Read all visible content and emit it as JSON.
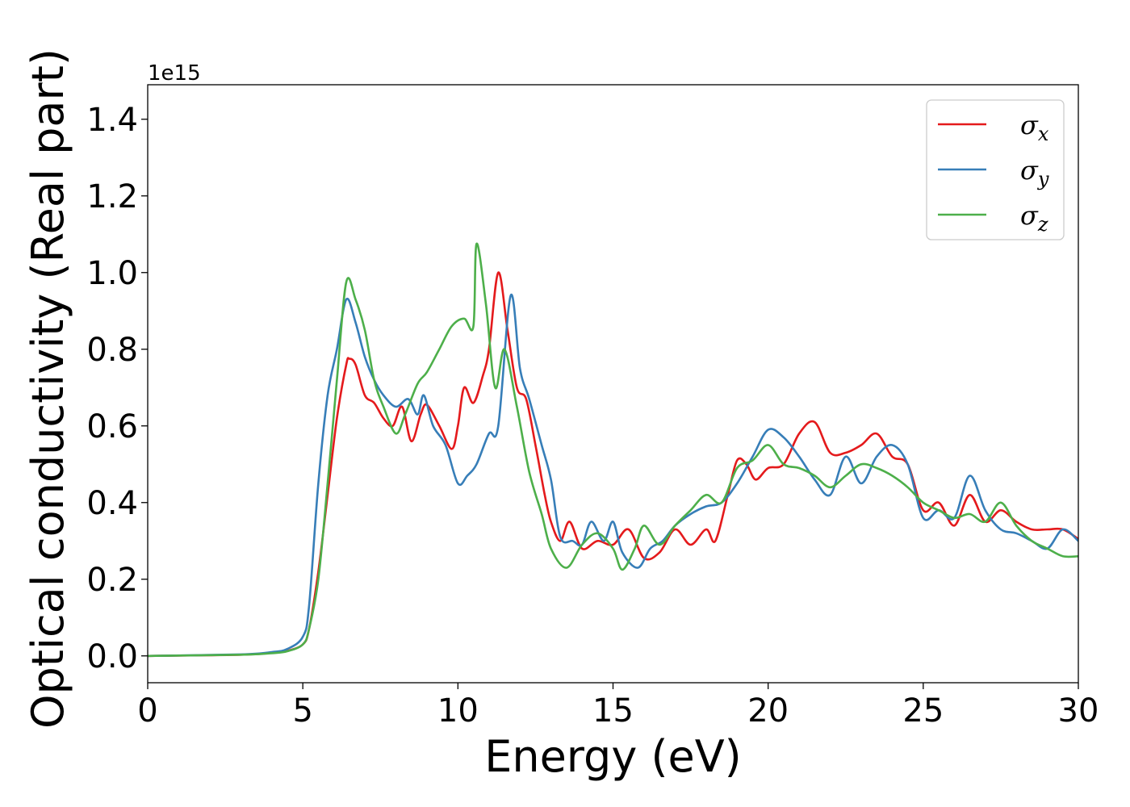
{
  "chart_data": {
    "type": "line",
    "xlabel": "Energy (eV)",
    "ylabel": "Optical conductivity (Real part)",
    "y_offset_label": "1e15",
    "xlim": [
      0,
      30
    ],
    "ylim": [
      -0.07,
      1.49
    ],
    "x_ticks": [
      "0",
      "5",
      "10",
      "15",
      "20",
      "25",
      "30"
    ],
    "y_ticks": [
      "0.0",
      "0.2",
      "0.4",
      "0.6",
      "0.8",
      "1.0",
      "1.2",
      "1.4"
    ],
    "grid": false,
    "legend_position": "top-right",
    "series": [
      {
        "name": "σx",
        "legend_symbol": "σ",
        "legend_subscript": "x",
        "color": "#e41a1c",
        "points": [
          [
            0,
            0
          ],
          [
            3,
            0.003
          ],
          [
            4,
            0.008
          ],
          [
            4.5,
            0.013
          ],
          [
            5,
            0.03
          ],
          [
            5.2,
            0.07
          ],
          [
            5.5,
            0.22
          ],
          [
            5.8,
            0.42
          ],
          [
            6.1,
            0.62
          ],
          [
            6.4,
            0.76
          ],
          [
            6.5,
            0.775
          ],
          [
            6.7,
            0.76
          ],
          [
            7.0,
            0.68
          ],
          [
            7.3,
            0.66
          ],
          [
            7.6,
            0.62
          ],
          [
            7.9,
            0.6
          ],
          [
            8.2,
            0.65
          ],
          [
            8.5,
            0.56
          ],
          [
            8.8,
            0.63
          ],
          [
            9.0,
            0.655
          ],
          [
            9.4,
            0.6
          ],
          [
            9.8,
            0.54
          ],
          [
            10.0,
            0.6
          ],
          [
            10.2,
            0.7
          ],
          [
            10.5,
            0.66
          ],
          [
            10.8,
            0.73
          ],
          [
            11.0,
            0.8
          ],
          [
            11.3,
            1.0
          ],
          [
            11.6,
            0.85
          ],
          [
            11.9,
            0.7
          ],
          [
            12.2,
            0.67
          ],
          [
            12.5,
            0.55
          ],
          [
            12.8,
            0.42
          ],
          [
            13.0,
            0.35
          ],
          [
            13.3,
            0.3
          ],
          [
            13.6,
            0.35
          ],
          [
            14.0,
            0.28
          ],
          [
            14.5,
            0.3
          ],
          [
            15.0,
            0.29
          ],
          [
            15.5,
            0.33
          ],
          [
            16.0,
            0.255
          ],
          [
            16.5,
            0.27
          ],
          [
            17.0,
            0.33
          ],
          [
            17.5,
            0.29
          ],
          [
            18.0,
            0.33
          ],
          [
            18.3,
            0.3
          ],
          [
            18.7,
            0.42
          ],
          [
            19.0,
            0.51
          ],
          [
            19.3,
            0.5
          ],
          [
            19.6,
            0.46
          ],
          [
            20.0,
            0.49
          ],
          [
            20.5,
            0.5
          ],
          [
            21.0,
            0.58
          ],
          [
            21.5,
            0.61
          ],
          [
            22.0,
            0.53
          ],
          [
            22.5,
            0.53
          ],
          [
            23.0,
            0.55
          ],
          [
            23.5,
            0.58
          ],
          [
            24.0,
            0.52
          ],
          [
            24.5,
            0.5
          ],
          [
            25.0,
            0.38
          ],
          [
            25.5,
            0.4
          ],
          [
            26.0,
            0.34
          ],
          [
            26.5,
            0.42
          ],
          [
            27.0,
            0.35
          ],
          [
            27.5,
            0.38
          ],
          [
            28.0,
            0.35
          ],
          [
            28.5,
            0.33
          ],
          [
            29.0,
            0.33
          ],
          [
            29.5,
            0.33
          ],
          [
            30.0,
            0.305
          ]
        ]
      },
      {
        "name": "σy",
        "legend_symbol": "σ",
        "legend_subscript": "y",
        "color": "#377eb8",
        "points": [
          [
            0,
            0
          ],
          [
            3,
            0.004
          ],
          [
            4,
            0.01
          ],
          [
            4.5,
            0.018
          ],
          [
            5,
            0.05
          ],
          [
            5.2,
            0.13
          ],
          [
            5.5,
            0.45
          ],
          [
            5.8,
            0.68
          ],
          [
            6.1,
            0.8
          ],
          [
            6.4,
            0.93
          ],
          [
            6.7,
            0.87
          ],
          [
            7.0,
            0.78
          ],
          [
            7.3,
            0.72
          ],
          [
            7.6,
            0.68
          ],
          [
            8.0,
            0.65
          ],
          [
            8.4,
            0.67
          ],
          [
            8.7,
            0.63
          ],
          [
            8.9,
            0.68
          ],
          [
            9.2,
            0.6
          ],
          [
            9.6,
            0.55
          ],
          [
            10.0,
            0.45
          ],
          [
            10.3,
            0.47
          ],
          [
            10.6,
            0.5
          ],
          [
            11.0,
            0.58
          ],
          [
            11.3,
            0.6
          ],
          [
            11.7,
            0.94
          ],
          [
            12.0,
            0.75
          ],
          [
            12.3,
            0.67
          ],
          [
            12.7,
            0.55
          ],
          [
            13.0,
            0.46
          ],
          [
            13.3,
            0.31
          ],
          [
            13.7,
            0.3
          ],
          [
            14.0,
            0.29
          ],
          [
            14.3,
            0.35
          ],
          [
            14.7,
            0.3
          ],
          [
            15.0,
            0.35
          ],
          [
            15.3,
            0.27
          ],
          [
            15.8,
            0.23
          ],
          [
            16.2,
            0.28
          ],
          [
            16.6,
            0.3
          ],
          [
            17.0,
            0.34
          ],
          [
            17.5,
            0.37
          ],
          [
            18.0,
            0.39
          ],
          [
            18.5,
            0.4
          ],
          [
            19.0,
            0.45
          ],
          [
            19.5,
            0.52
          ],
          [
            20.0,
            0.59
          ],
          [
            20.5,
            0.57
          ],
          [
            21.0,
            0.52
          ],
          [
            21.5,
            0.46
          ],
          [
            22.0,
            0.42
          ],
          [
            22.5,
            0.52
          ],
          [
            23.0,
            0.45
          ],
          [
            23.5,
            0.52
          ],
          [
            24.0,
            0.55
          ],
          [
            24.5,
            0.5
          ],
          [
            25.0,
            0.36
          ],
          [
            25.5,
            0.38
          ],
          [
            26.0,
            0.36
          ],
          [
            26.5,
            0.47
          ],
          [
            27.0,
            0.38
          ],
          [
            27.5,
            0.33
          ],
          [
            28.0,
            0.32
          ],
          [
            28.5,
            0.3
          ],
          [
            29.0,
            0.28
          ],
          [
            29.5,
            0.33
          ],
          [
            30.0,
            0.3
          ]
        ]
      },
      {
        "name": "σz",
        "legend_symbol": "σ",
        "legend_subscript": "z",
        "color": "#4daf4a",
        "points": [
          [
            0,
            0
          ],
          [
            3,
            0.003
          ],
          [
            4,
            0.007
          ],
          [
            4.5,
            0.012
          ],
          [
            5,
            0.03
          ],
          [
            5.2,
            0.07
          ],
          [
            5.5,
            0.2
          ],
          [
            5.8,
            0.45
          ],
          [
            6.1,
            0.72
          ],
          [
            6.4,
            0.975
          ],
          [
            6.7,
            0.93
          ],
          [
            7.0,
            0.85
          ],
          [
            7.3,
            0.72
          ],
          [
            7.6,
            0.65
          ],
          [
            8.0,
            0.58
          ],
          [
            8.3,
            0.63
          ],
          [
            8.7,
            0.71
          ],
          [
            9.0,
            0.74
          ],
          [
            9.4,
            0.8
          ],
          [
            9.8,
            0.86
          ],
          [
            10.2,
            0.88
          ],
          [
            10.5,
            0.86
          ],
          [
            10.6,
            1.075
          ],
          [
            10.9,
            0.92
          ],
          [
            11.2,
            0.7
          ],
          [
            11.5,
            0.8
          ],
          [
            11.9,
            0.65
          ],
          [
            12.3,
            0.48
          ],
          [
            12.7,
            0.37
          ],
          [
            13.0,
            0.28
          ],
          [
            13.5,
            0.23
          ],
          [
            14.0,
            0.29
          ],
          [
            14.5,
            0.32
          ],
          [
            15.0,
            0.28
          ],
          [
            15.3,
            0.225
          ],
          [
            15.7,
            0.28
          ],
          [
            16.0,
            0.34
          ],
          [
            16.5,
            0.29
          ],
          [
            17.0,
            0.34
          ],
          [
            17.5,
            0.38
          ],
          [
            18.0,
            0.42
          ],
          [
            18.5,
            0.4
          ],
          [
            19.0,
            0.49
          ],
          [
            19.5,
            0.51
          ],
          [
            20.0,
            0.55
          ],
          [
            20.5,
            0.5
          ],
          [
            21.0,
            0.49
          ],
          [
            21.5,
            0.47
          ],
          [
            22.0,
            0.44
          ],
          [
            22.5,
            0.47
          ],
          [
            23.0,
            0.5
          ],
          [
            23.5,
            0.49
          ],
          [
            24.0,
            0.47
          ],
          [
            24.5,
            0.44
          ],
          [
            25.0,
            0.4
          ],
          [
            25.5,
            0.38
          ],
          [
            26.0,
            0.36
          ],
          [
            26.5,
            0.37
          ],
          [
            27.0,
            0.35
          ],
          [
            27.5,
            0.4
          ],
          [
            28.0,
            0.34
          ],
          [
            28.5,
            0.3
          ],
          [
            29.0,
            0.28
          ],
          [
            29.5,
            0.26
          ],
          [
            30.0,
            0.26
          ]
        ]
      }
    ]
  }
}
